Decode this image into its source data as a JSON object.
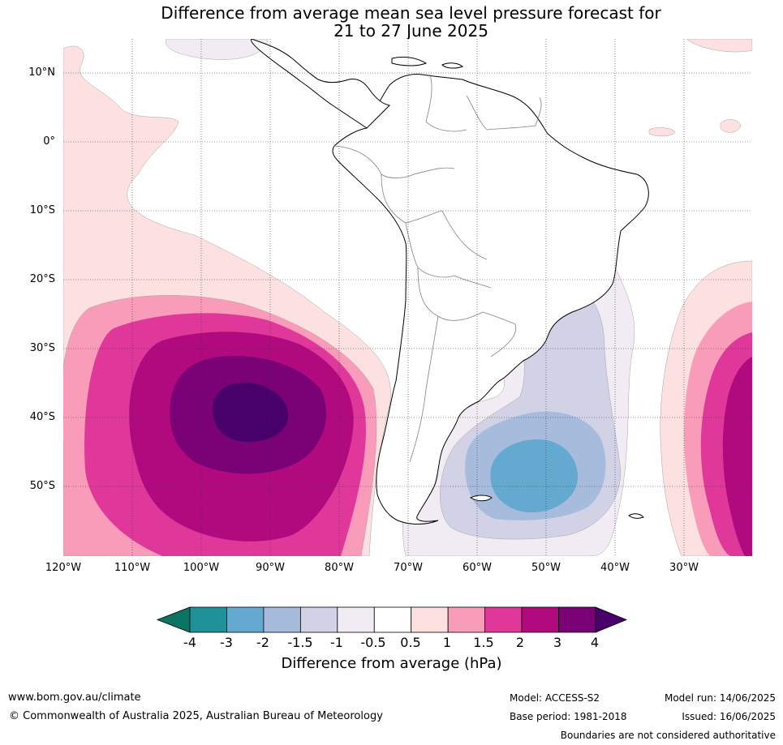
{
  "title": {
    "line1": "Difference from average mean sea level pressure forecast for",
    "line2": "21 to 27 June 2025"
  },
  "map": {
    "lat_labels": [
      "10°N",
      "0°",
      "10°S",
      "20°S",
      "30°S",
      "40°S",
      "50°S"
    ],
    "lon_labels": [
      "120°W",
      "110°W",
      "100°W",
      "90°W",
      "80°W",
      "70°W",
      "60°W",
      "50°W",
      "40°W",
      "30°W"
    ],
    "lat_range": [
      -60,
      15
    ],
    "lon_range": [
      -120,
      -20
    ],
    "grid": true,
    "land_fill": "#ffffff",
    "coast_color": "#000000",
    "border_color": "#808080"
  },
  "colorbar": {
    "title": "Difference from average (hPa)",
    "tick_labels": [
      "-4",
      "-3",
      "-2",
      "-1.5",
      "-1",
      "-0.5",
      "0.5",
      "1",
      "1.5",
      "2",
      "3",
      "4"
    ],
    "colors": [
      "#0b7463",
      "#1f9199",
      "#64a9d0",
      "#a7bcdc",
      "#d1d2e6",
      "#f1ecf3",
      "#ffffff",
      "#fde0e0",
      "#f99cba",
      "#e0379b",
      "#b10a7e",
      "#7a0176",
      "#48006a"
    ],
    "extend": "both"
  },
  "chart_data": {
    "type": "heatmap",
    "title": "Difference from average mean sea level pressure forecast for 21 to 27 June 2025",
    "units": "hPa",
    "levels": [
      -4,
      -3,
      -2,
      -1.5,
      -1,
      -0.5,
      0.5,
      1,
      1.5,
      2,
      3,
      4
    ],
    "features": [
      {
        "label": "positive anomaly SE Pacific",
        "center_lon": -93,
        "center_lat": -39,
        "max_value": 4
      },
      {
        "label": "negative anomaly SW Atlantic",
        "center_lon": -52,
        "center_lat": -48,
        "min_value": -2
      },
      {
        "label": "positive anomaly South Atlantic",
        "center_lon": -20,
        "center_lat": -40,
        "max_value": 3
      }
    ]
  },
  "footer": {
    "website": "www.bom.gov.au/climate",
    "copyright": "© Commonwealth of Australia 2025, Australian Bureau of Meteorology",
    "model": "Model: ACCESS-S2",
    "base_period": "Base period: 1981-2018",
    "model_run": "Model run: 14/06/2025",
    "issued": "Issued: 16/06/2025",
    "disclaimer": "Boundaries are not considered authoritative"
  }
}
